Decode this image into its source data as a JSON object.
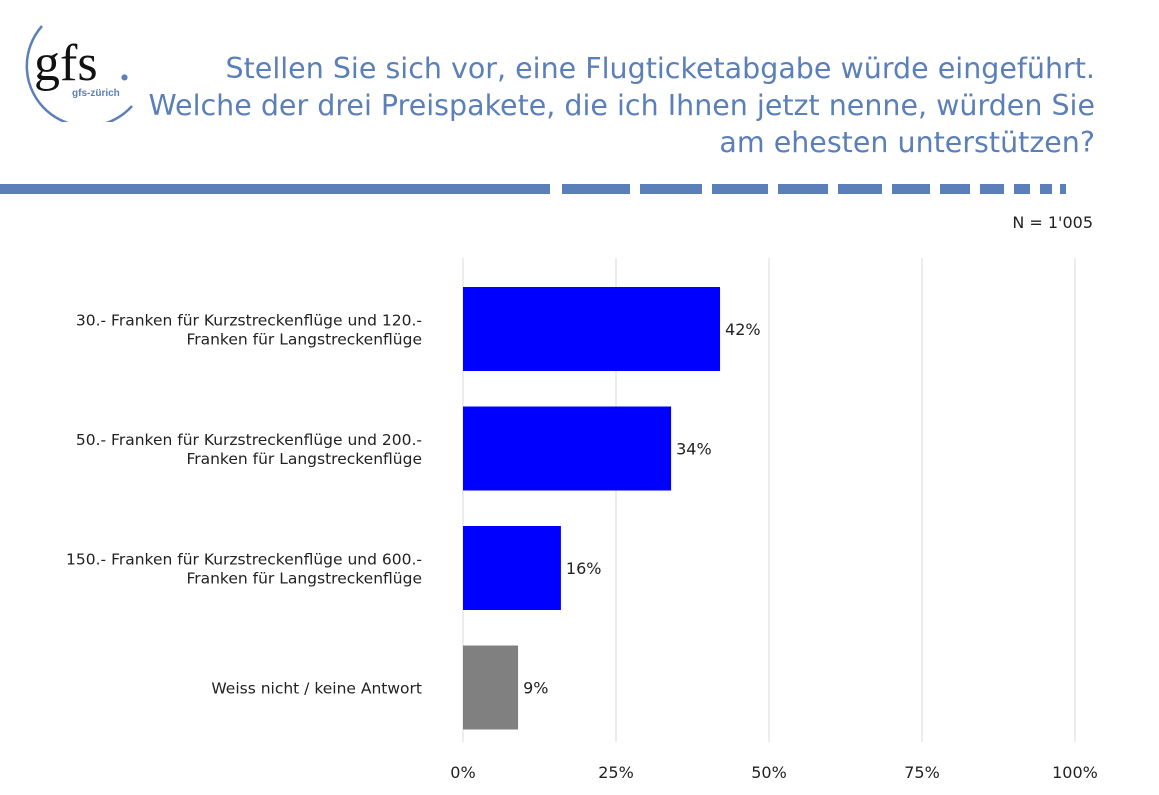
{
  "logo": {
    "main": "gfs",
    "dot": ".",
    "sub": "gfs-zürich"
  },
  "title_lines": [
    "Stellen Sie sich vor, eine Flugticketabgabe würde eingeführt.",
    "Welche der drei Preispakete, die ich Ihnen jetzt nenne, würden Sie",
    "am ehesten unterstützen?"
  ],
  "sample_size": "N = 1'005",
  "colors": {
    "brand": "#5b7fb8",
    "bar_primary": "#0000ff",
    "bar_secondary": "#808080",
    "grid": "#e6e6e6"
  },
  "chart_data": {
    "type": "bar",
    "orientation": "horizontal",
    "categories": [
      [
        "30.- Franken für Kurzstreckenflüge und 120.-",
        "Franken für Langstreckenflüge"
      ],
      [
        "50.- Franken für Kurzstreckenflüge und 200.-",
        "Franken für Langstreckenflüge"
      ],
      [
        "150.- Franken für Kurzstreckenflüge und 600.-",
        "Franken für Langstreckenflüge"
      ],
      [
        "Weiss nicht / keine Antwort"
      ]
    ],
    "values": [
      42,
      34,
      16,
      9
    ],
    "value_labels": [
      "42%",
      "34%",
      "16%",
      "9%"
    ],
    "bar_colors": [
      "#0000ff",
      "#0000ff",
      "#0000ff",
      "#808080"
    ],
    "xlim": [
      0,
      100
    ],
    "xticks": [
      0,
      25,
      50,
      75,
      100
    ],
    "xtick_labels": [
      "0%",
      "25%",
      "50%",
      "75%",
      "100%"
    ],
    "grid": true,
    "legend": false
  }
}
